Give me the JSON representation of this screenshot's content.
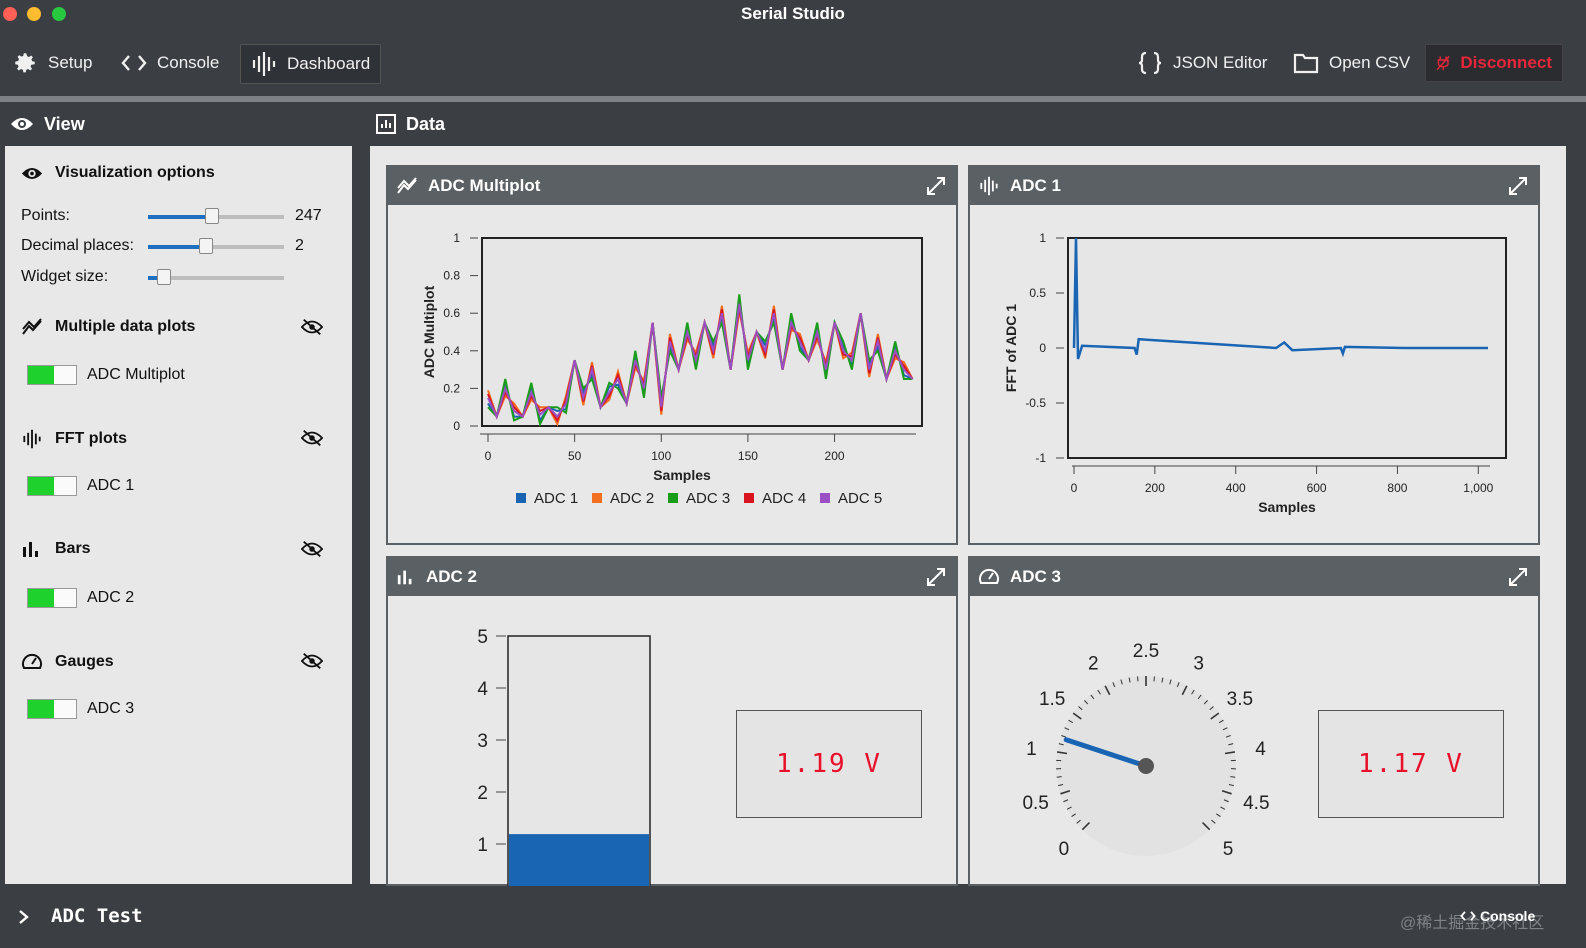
{
  "app": {
    "title": "Serial Studio"
  },
  "toolbar": {
    "setup": "Setup",
    "console": "Console",
    "dashboard": "Dashboard",
    "json_editor": "JSON Editor",
    "open_csv": "Open CSV",
    "disconnect": "Disconnect"
  },
  "view_panel": {
    "title": "View",
    "viz_title": "Visualization options",
    "options": [
      {
        "label": "Points:",
        "value": "247",
        "fraction": 0.47
      },
      {
        "label": "Decimal places:",
        "value": "2",
        "fraction": 0.43
      },
      {
        "label": "Widget size:",
        "value": "",
        "fraction": 0.12
      }
    ],
    "groups": [
      {
        "title": "Multiple data plots",
        "item": "ADC Multiplot"
      },
      {
        "title": "FFT plots",
        "item": "ADC 1"
      },
      {
        "title": "Bars",
        "item": "ADC 2"
      },
      {
        "title": "Gauges",
        "item": "ADC 3"
      }
    ]
  },
  "data_panel": {
    "title": "Data"
  },
  "widgets": {
    "multiplot": {
      "title": "ADC Multiplot"
    },
    "fft": {
      "title": "ADC 1"
    },
    "bar": {
      "title": "ADC 2",
      "display": "1.19 V"
    },
    "gauge": {
      "title": "ADC 3",
      "display": "1.17 V"
    }
  },
  "colors": {
    "series": [
      "#1a64b4",
      "#f26f1f",
      "#1a9e1a",
      "#d9141e",
      "#9b4fc4"
    ],
    "accent": "#1f6fc0",
    "danger": "#e8263a",
    "toggle_on": "#1fd12c"
  },
  "chart_data": [
    {
      "type": "line",
      "ylabel": "ADC Multiplot",
      "xlabel": "Samples",
      "xlim": [
        0,
        247
      ],
      "ylim": [
        0,
        1
      ],
      "xticks": [
        "0",
        "50",
        "100",
        "150",
        "200"
      ],
      "yticks": [
        "0",
        "0.2",
        "0.4",
        "0.6",
        "0.8",
        "1"
      ],
      "legend": [
        "ADC 1",
        "ADC 2",
        "ADC 3",
        "ADC 4",
        "ADC 5"
      ],
      "legend_position": "bottom",
      "x": [
        0,
        5,
        10,
        15,
        20,
        25,
        30,
        35,
        40,
        45,
        50,
        55,
        60,
        65,
        70,
        75,
        80,
        85,
        90,
        95,
        100,
        105,
        110,
        115,
        120,
        125,
        130,
        135,
        140,
        145,
        150,
        155,
        160,
        165,
        170,
        175,
        180,
        185,
        190,
        195,
        200,
        205,
        210,
        215,
        220,
        225,
        230,
        235,
        240,
        245
      ],
      "y": [
        0.15,
        0.05,
        0.2,
        0.08,
        0.05,
        0.18,
        0.06,
        0.1,
        0.05,
        0.12,
        0.35,
        0.15,
        0.3,
        0.1,
        0.18,
        0.25,
        0.12,
        0.35,
        0.2,
        0.55,
        0.1,
        0.45,
        0.3,
        0.5,
        0.35,
        0.55,
        0.4,
        0.6,
        0.3,
        0.65,
        0.35,
        0.5,
        0.4,
        0.6,
        0.3,
        0.55,
        0.45,
        0.35,
        0.5,
        0.3,
        0.55,
        0.4,
        0.35,
        0.6,
        0.3,
        0.45,
        0.25,
        0.4,
        0.3,
        0.25
      ]
    },
    {
      "type": "line",
      "ylabel": "FFT of ADC 1",
      "xlabel": "Samples",
      "xlim": [
        0,
        1024
      ],
      "ylim": [
        -1,
        1
      ],
      "xticks": [
        "0",
        "200",
        "400",
        "600",
        "800",
        "1,000"
      ],
      "yticks": [
        "-1",
        "-0.5",
        "0",
        "0.5",
        "1"
      ],
      "x": [
        0,
        5,
        10,
        20,
        150,
        155,
        160,
        500,
        520,
        540,
        660,
        665,
        670,
        820,
        1024
      ],
      "y": [
        0,
        1,
        -0.1,
        0.02,
        0.0,
        -0.06,
        0.08,
        0.0,
        0.05,
        -0.02,
        0.0,
        -0.05,
        0.01,
        0.0,
        0.0
      ]
    },
    {
      "type": "bar",
      "ylim": [
        0,
        5
      ],
      "yticks": [
        "1",
        "2",
        "3",
        "4",
        "5"
      ],
      "values": [
        1.19
      ]
    },
    {
      "type": "gauge",
      "range": [
        0,
        5
      ],
      "ticks": [
        "0",
        "0.5",
        "1",
        "1.5",
        "2",
        "2.5",
        "3",
        "3.5",
        "4",
        "4.5",
        "5"
      ],
      "value": 1.17
    }
  ],
  "statusbar": {
    "title": "ADC Test",
    "console": "Console",
    "watermark": "@稀土掘金技术社区"
  }
}
